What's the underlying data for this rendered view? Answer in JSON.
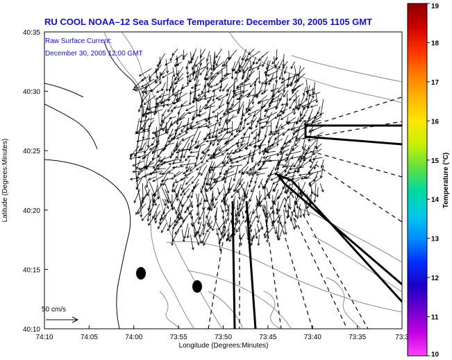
{
  "title": "RU COOL   NOAA–12  Sea Surface Temperature:  December 30, 2005 1105 GMT",
  "legend_note": {
    "line1": "Raw Surface Current:",
    "line2": "December 30, 2005 12:00 GMT"
  },
  "scale": {
    "label": "50 cm/s"
  },
  "axes": {
    "xlabel": "Longitude (Degrees:Minutes)",
    "ylabel": "Latitude (Degrees:Minutes)",
    "xticks": [
      "74:10",
      "74:05",
      "74:00",
      "73:55",
      "73:50",
      "73:45",
      "73:40",
      "73:35",
      "73:3"
    ],
    "yticks": [
      "40:35",
      "40:30",
      "40:25",
      "40:20",
      "40:15",
      "40:10"
    ]
  },
  "colorbar": {
    "label": "Temperature (°C)",
    "ticks": [
      "19",
      "18",
      "17",
      "16",
      "15",
      "14",
      "13",
      "12",
      "11",
      "10"
    ],
    "colors": [
      "#8b0000",
      "#d00000",
      "#ff3000",
      "#ff7a00",
      "#ffb400",
      "#ffe600",
      "#c8f000",
      "#60e040",
      "#00d8a0",
      "#00c8e8",
      "#0090ff",
      "#0030ff",
      "#1a00c8",
      "#6a00d0",
      "#c000e0",
      "#ff40ff"
    ]
  },
  "colors": {
    "title": "#1010c8",
    "legend_note": "#1010c8",
    "vectors": "#000000",
    "contours": "#888888"
  }
}
